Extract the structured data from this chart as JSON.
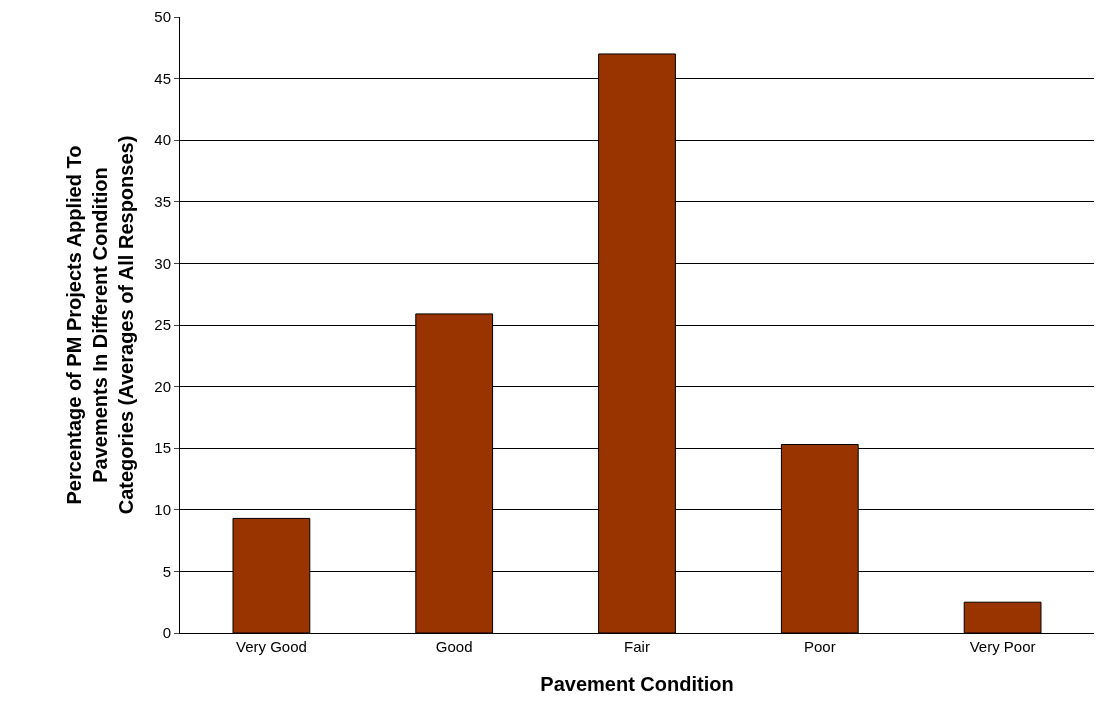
{
  "chart_data": {
    "type": "bar",
    "xlabel": "Pavement Condition",
    "ylabel": "Percentage of PM Projects Applied To\nPavements In Different Condition\nCategories (Averages of All Responses)",
    "categories": [
      "Very Good",
      "Good",
      "Fair",
      "Poor",
      "Very Poor"
    ],
    "values": [
      9.3,
      25.9,
      47,
      15.3,
      2.5
    ],
    "color": "#993300",
    "ylim": [
      0,
      50
    ],
    "yticks": [
      0,
      5,
      10,
      15,
      20,
      25,
      30,
      35,
      40,
      45,
      50
    ],
    "grid": "y"
  }
}
